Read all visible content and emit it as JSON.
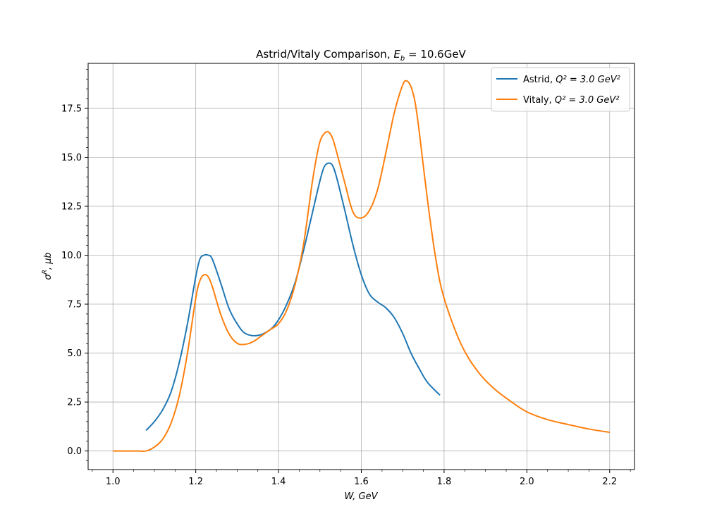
{
  "chart_data": {
    "type": "line",
    "title_main": "Astrid/Vitaly Comparison, ",
    "title_math": "E",
    "title_sub": "b",
    "title_rest": " = 10.6GeV",
    "xlabel": "W, GeV",
    "ylabel_symbol": "σ",
    "ylabel_sup": "R",
    "ylabel_rest": ", μb",
    "xlim": [
      0.94,
      2.26
    ],
    "ylim": [
      -0.95,
      19.8
    ],
    "xticks": [
      1.0,
      1.2,
      1.4,
      1.6,
      1.8,
      2.0,
      2.2
    ],
    "xtick_labels": [
      "1.0",
      "1.2",
      "1.4",
      "1.6",
      "1.8",
      "2.0",
      "2.2"
    ],
    "yticks": [
      0.0,
      2.5,
      5.0,
      7.5,
      10.0,
      12.5,
      15.0,
      17.5
    ],
    "ytick_labels": [
      "0.0",
      "2.5",
      "5.0",
      "7.5",
      "10.0",
      "12.5",
      "15.0",
      "17.5"
    ],
    "grid": true,
    "legend_position": "top-right",
    "series": [
      {
        "name": "Astrid, ",
        "name_math": "Q² = 3.0 GeV²",
        "color": "#1f77b4",
        "x": [
          1.08,
          1.1,
          1.12,
          1.14,
          1.16,
          1.18,
          1.2,
          1.21,
          1.22,
          1.23,
          1.24,
          1.26,
          1.28,
          1.3,
          1.32,
          1.35,
          1.38,
          1.4,
          1.42,
          1.44,
          1.46,
          1.48,
          1.5,
          1.51,
          1.52,
          1.53,
          1.54,
          1.56,
          1.58,
          1.6,
          1.62,
          1.64,
          1.66,
          1.68,
          1.7,
          1.72,
          1.74,
          1.76,
          1.79
        ],
        "y": [
          1.05,
          1.5,
          2.1,
          3.0,
          4.5,
          6.5,
          8.9,
          9.8,
          10.0,
          10.0,
          9.8,
          8.6,
          7.3,
          6.5,
          6.0,
          5.9,
          6.2,
          6.7,
          7.5,
          8.6,
          10.2,
          12.0,
          13.8,
          14.5,
          14.7,
          14.6,
          14.0,
          12.3,
          10.5,
          9.0,
          8.0,
          7.6,
          7.3,
          6.8,
          6.0,
          5.0,
          4.2,
          3.5,
          2.85
        ]
      },
      {
        "name": "Vitaly, ",
        "name_math": "Q² = 3.0 GeV²",
        "color": "#ff7f0e",
        "x": [
          1.0,
          1.02,
          1.04,
          1.06,
          1.08,
          1.1,
          1.12,
          1.14,
          1.16,
          1.18,
          1.2,
          1.21,
          1.22,
          1.23,
          1.24,
          1.26,
          1.28,
          1.3,
          1.32,
          1.34,
          1.36,
          1.38,
          1.4,
          1.42,
          1.44,
          1.46,
          1.48,
          1.49,
          1.5,
          1.51,
          1.52,
          1.53,
          1.54,
          1.56,
          1.58,
          1.6,
          1.62,
          1.64,
          1.66,
          1.68,
          1.7,
          1.71,
          1.72,
          1.73,
          1.74,
          1.76,
          1.78,
          1.8,
          1.84,
          1.88,
          1.92,
          1.96,
          2.0,
          2.05,
          2.1,
          2.15,
          2.2
        ],
        "y": [
          0.0,
          0.0,
          0.0,
          0.0,
          0.0,
          0.2,
          0.6,
          1.4,
          2.8,
          5.0,
          7.8,
          8.7,
          9.0,
          8.9,
          8.4,
          7.0,
          6.0,
          5.5,
          5.45,
          5.6,
          5.9,
          6.2,
          6.5,
          7.2,
          8.5,
          10.5,
          13.5,
          14.8,
          15.8,
          16.2,
          16.3,
          16.0,
          15.3,
          13.7,
          12.2,
          11.9,
          12.3,
          13.4,
          15.3,
          17.3,
          18.7,
          18.9,
          18.6,
          17.8,
          16.3,
          12.8,
          9.8,
          7.8,
          5.5,
          4.1,
          3.2,
          2.55,
          2.0,
          1.6,
          1.35,
          1.12,
          0.95
        ]
      }
    ]
  }
}
